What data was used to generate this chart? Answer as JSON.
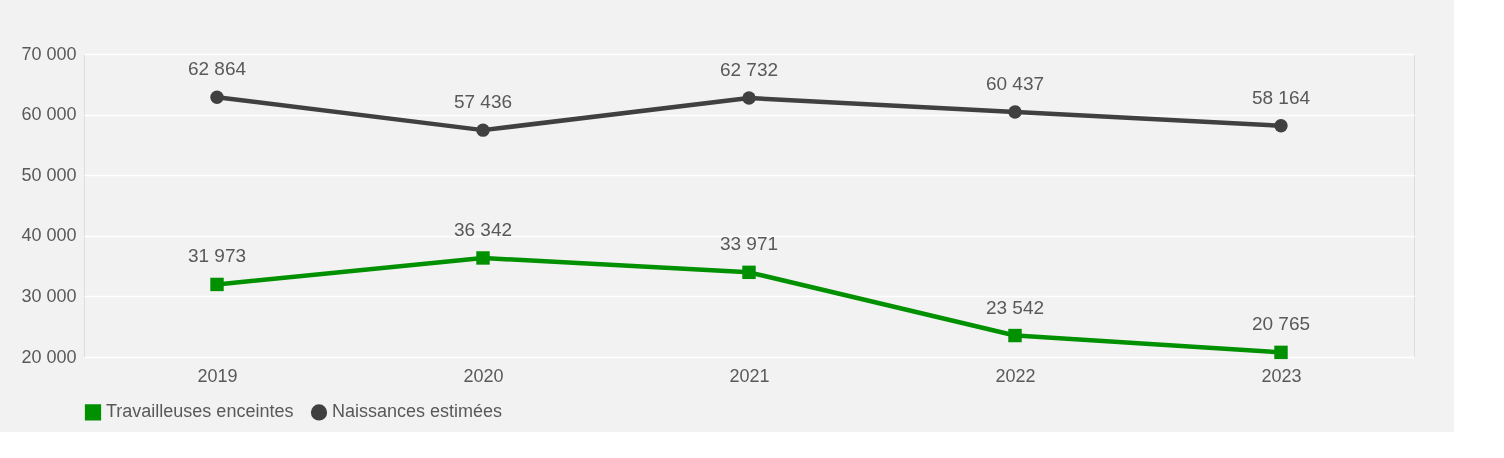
{
  "chart_data": {
    "type": "line",
    "categories": [
      "2019",
      "2020",
      "2021",
      "2022",
      "2023"
    ],
    "series": [
      {
        "name": "Travailleuses enceintes",
        "color": "#009000",
        "marker": "square",
        "values": [
          31973,
          36342,
          33971,
          23542,
          20765
        ],
        "value_labels": [
          "31 973",
          "36 342",
          "33 971",
          "23 542",
          "20 765"
        ]
      },
      {
        "name": "Naissances estimées",
        "color": "#404040",
        "marker": "circle",
        "values": [
          62864,
          57436,
          62732,
          60437,
          58164
        ],
        "value_labels": [
          "62 864",
          "57 436",
          "62 732",
          "60 437",
          "58 164"
        ]
      }
    ],
    "ylim": [
      20000,
      70000
    ],
    "yticks": [
      {
        "value": 20000,
        "label": "20 000"
      },
      {
        "value": 30000,
        "label": "30 000"
      },
      {
        "value": 40000,
        "label": "40 000"
      },
      {
        "value": 50000,
        "label": "50 000"
      },
      {
        "value": 60000,
        "label": "60 000"
      },
      {
        "value": 70000,
        "label": "70 000"
      }
    ],
    "grid": "y",
    "legend": "bottom",
    "line_style": "solid"
  }
}
